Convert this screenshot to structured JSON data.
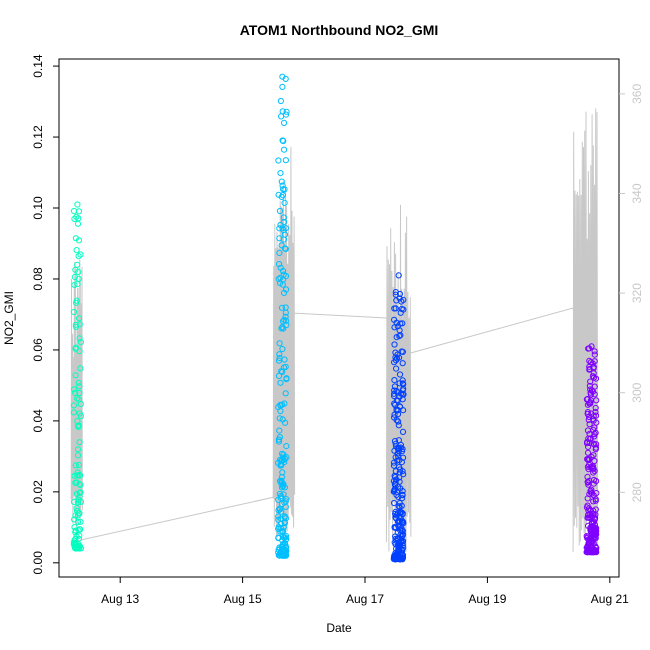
{
  "chart_data": {
    "type": "scatter",
    "title": "ATOM1 Northbound NO2_GMI",
    "xlabel": "Date",
    "ylabel": "NO2_GMI",
    "x_ticks": [
      "Aug 13",
      "Aug 15",
      "Aug 17",
      "Aug 19",
      "Aug 21"
    ],
    "x_tick_values": [
      13,
      15,
      17,
      19,
      21
    ],
    "xlim": [
      12.0,
      21.15
    ],
    "y_ticks": [
      "0.00",
      "0.02",
      "0.04",
      "0.06",
      "0.08",
      "0.10",
      "0.12",
      "0.14"
    ],
    "y_tick_values": [
      0,
      0.02,
      0.04,
      0.06,
      0.08,
      0.1,
      0.12,
      0.14
    ],
    "ylim": [
      -0.004,
      0.142
    ],
    "y2_ticks": [
      "280",
      "300",
      "320",
      "340",
      "360"
    ],
    "y2_tick_values": [
      280,
      300,
      320,
      340,
      360
    ],
    "y2lim": [
      263,
      367
    ],
    "grid": false,
    "legend": "none",
    "colors": {
      "flight1": "#00ffbf",
      "flight2": "#00bfff",
      "flight3": "#0040ff",
      "flight4": "#7f00ff",
      "secondary_line": "#c8c8c8",
      "axis": "#000000"
    },
    "clusters": [
      {
        "x_center": 12.3,
        "x_spread": 0.12,
        "y_min": 0.004,
        "y_max": 0.101,
        "n": 110,
        "color": "#00ffbf"
      },
      {
        "x_center": 15.65,
        "x_spread": 0.14,
        "y_min": 0.002,
        "y_max": 0.137,
        "n": 200,
        "color": "#00bfff"
      },
      {
        "x_center": 17.55,
        "x_spread": 0.16,
        "y_min": 0.001,
        "y_max": 0.081,
        "n": 240,
        "color": "#0040ff"
      },
      {
        "x_center": 20.7,
        "x_spread": 0.16,
        "y_min": 0.003,
        "y_max": 0.061,
        "n": 240,
        "color": "#7f00ff"
      }
    ],
    "secondary_series": {
      "name": "",
      "axis": "right",
      "x": [
        12.2,
        15.5,
        15.8,
        17.35,
        17.75,
        20.4,
        20.75
      ],
      "y": [
        270,
        279,
        316,
        315,
        308,
        317,
        290
      ]
    }
  }
}
